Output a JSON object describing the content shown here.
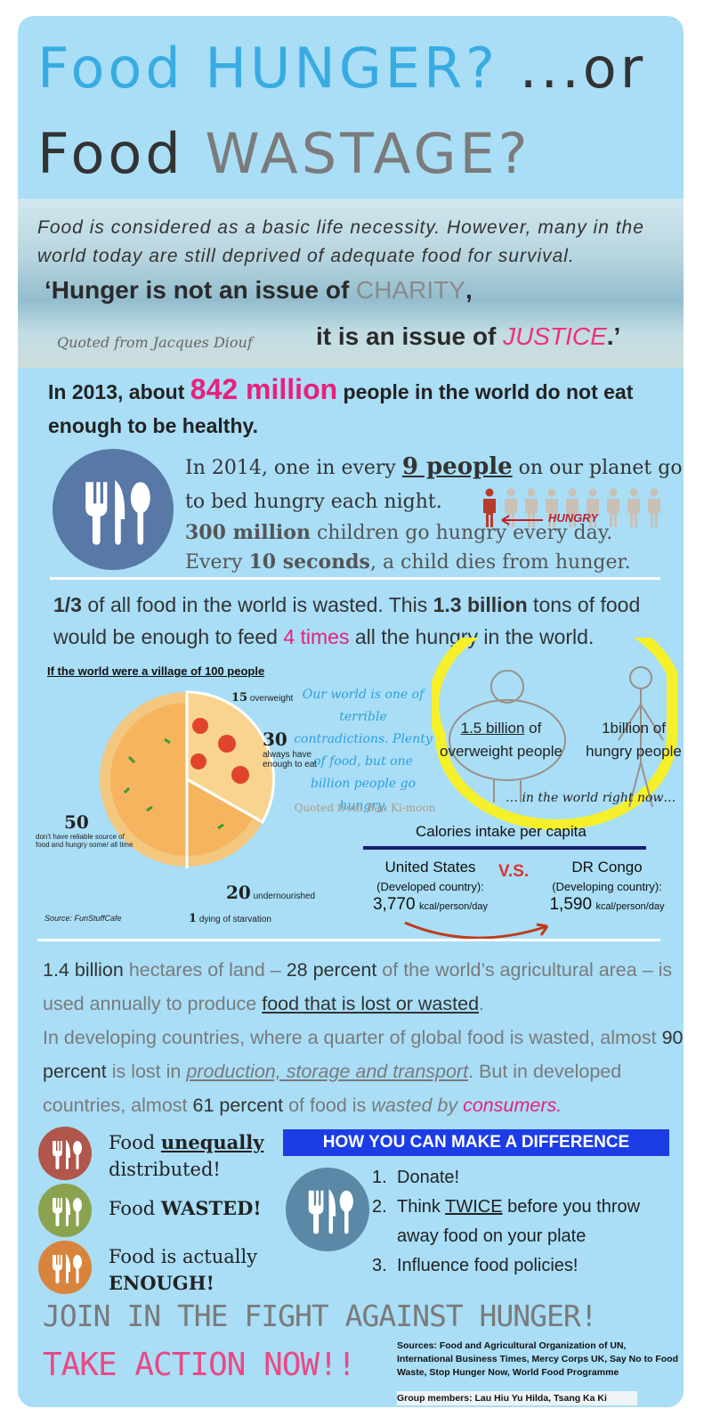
{
  "title": {
    "line1": [
      "Food HUNGER? ",
      "...or"
    ],
    "line2": [
      "Food ",
      "WASTAGE?"
    ]
  },
  "intro": "Food is considered as a basic life necessity. However, many in the world today are still deprived of adequate food for survival.",
  "quote": {
    "parts": [
      "‘Hunger is not an issue of ",
      "CHARITY",
      ",",
      "it is an issue of ",
      "JUSTICE",
      ".’"
    ],
    "attribution": "Quoted from Jacques Diouf"
  },
  "stat_2013": [
    "In 2013, about ",
    "842 million",
    " people in the world do not eat enough to be healthy."
  ],
  "facts": {
    "line1": [
      "In 2014, one in every ",
      "9 people",
      " on our planet go to bed hungry each night."
    ],
    "hungry_label": "HUNGRY",
    "line2": [
      "300 million",
      " children go hungry every day."
    ],
    "line3": [
      "Every ",
      "10 seconds",
      ", a child dies from hunger."
    ]
  },
  "waste": [
    "1/3",
    " of all food in the world is wasted. This ",
    "1.3 billion",
    " tons of food would be enough to feed ",
    "4 times",
    " all the hungry in the world."
  ],
  "village": {
    "title": "If the world were a village of 100 people",
    "labels": [
      {
        "number": "15",
        "text": "overweight"
      },
      {
        "number": "30",
        "text": "always have enough to eat"
      },
      {
        "number": "50",
        "text": "don't have reliable source of food and hungry some/ all time"
      },
      {
        "number": "20",
        "text": "undernourished"
      },
      {
        "number": "1",
        "text": "dying of starvation"
      }
    ],
    "source": "Source: FunStuffCafe"
  },
  "quote2": {
    "text": "Our world is one of terrible contradictions. Plenty of food, but one billion people go hungry.",
    "attribution": "Quoted from Ban Ki-moon"
  },
  "compare": {
    "overweight": [
      "1.5 billion",
      " of overweight people"
    ],
    "hungry": [
      "1billion",
      " of hungry people"
    ],
    "caption": "… in the world right now…"
  },
  "calories": {
    "title": "Calories intake per capita",
    "vs": "V.S.",
    "countries": [
      {
        "name": "United States",
        "type": "(Developed country):",
        "value": "3,770",
        "unit": "kcal/person/day"
      },
      {
        "name": "DR Congo",
        "type": "(Developing country):",
        "value": "1,590",
        "unit": "kcal/person/day"
      }
    ]
  },
  "land": [
    "1.4 billion",
    " hectares of land – ",
    "28 percent",
    " of the world’s agricultural area – is used annually to produce ",
    "food that is lost or wasted",
    ".",
    "In developing countries, where a quarter of global food is wasted, almost ",
    "90 percent",
    " is lost in ",
    "production, storage and transport",
    ". But in developed countries, almost ",
    "61 percent",
    " of food is ",
    "wasted by ",
    "consumers."
  ],
  "problems": [
    [
      "Food ",
      "unequally",
      " distributed!"
    ],
    [
      "Food ",
      "WASTED!"
    ],
    [
      "Food is actually ",
      "ENOUGH!"
    ]
  ],
  "difference": {
    "title": "HOW YOU CAN MAKE A DIFFERENCE",
    "items": [
      {
        "number": "1.",
        "text": [
          "Donate!"
        ]
      },
      {
        "number": "2.",
        "text": [
          "Think ",
          "TWICE",
          " before you throw away food on your plate"
        ]
      },
      {
        "number": "3.",
        "text": [
          "Influence food policies!"
        ]
      }
    ]
  },
  "footer": {
    "join": "JOIN IN THE FIGHT AGAINST HUNGER!",
    "action": "TAKE ACTION NOW!!",
    "sources": "Sources: Food and Agricultural Organization of UN, International Business Times, Mercy Corps UK, Say No to Food Waste, Stop Hunger Now, World Food Programme",
    "group": "Group members: Lau Hiu Yu Hilda, Tsang Ka Ki"
  }
}
